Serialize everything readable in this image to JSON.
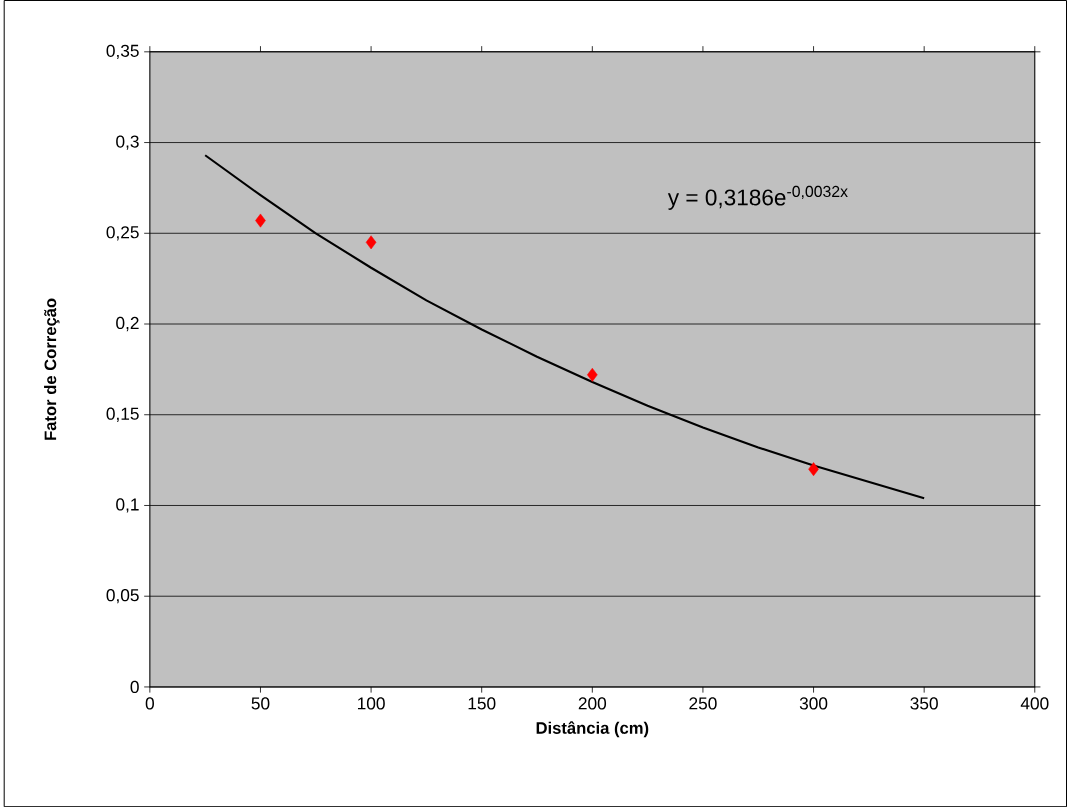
{
  "chart_data": {
    "type": "scatter",
    "xlabel": "Distância (cm)",
    "ylabel": "Fator de Correção",
    "annotations": [
      "y = 0,3186e$^{-0,0032x}$"
    ],
    "series": [
      {
        "color": "#ff0000",
        "marker": "diamond",
        "x": [
          50,
          100,
          200,
          300
        ],
        "values": [
          0.257,
          0.245,
          0.172,
          0.12
        ]
      },
      {
        "type": "line",
        "color": "#000000",
        "x": [
          25,
          50,
          75,
          100,
          125,
          150,
          175,
          200,
          225,
          250,
          275,
          300,
          325,
          350
        ],
        "values": [
          0.293,
          0.271,
          0.25,
          0.231,
          0.213,
          0.197,
          0.182,
          0.168,
          0.155,
          0.143,
          0.132,
          0.122,
          0.113,
          0.104
        ]
      }
    ],
    "xlim": [
      0,
      400
    ],
    "xticks": [
      0,
      50,
      100,
      150,
      200,
      250,
      300,
      350,
      400
    ],
    "ylim": [
      0,
      0.35
    ],
    "yticks": [
      {
        "value": 0,
        "label": "0"
      },
      {
        "value": 0.05,
        "label": "0,05"
      },
      {
        "value": 0.1,
        "label": "0,1"
      },
      {
        "value": 0.15,
        "label": "0,15"
      },
      {
        "value": 0.2,
        "label": "0,2"
      },
      {
        "value": 0.25,
        "label": "0,25"
      },
      {
        "value": 0.3,
        "label": "0,3"
      },
      {
        "value": 0.35,
        "label": "0,35"
      }
    ],
    "grid": "y"
  }
}
